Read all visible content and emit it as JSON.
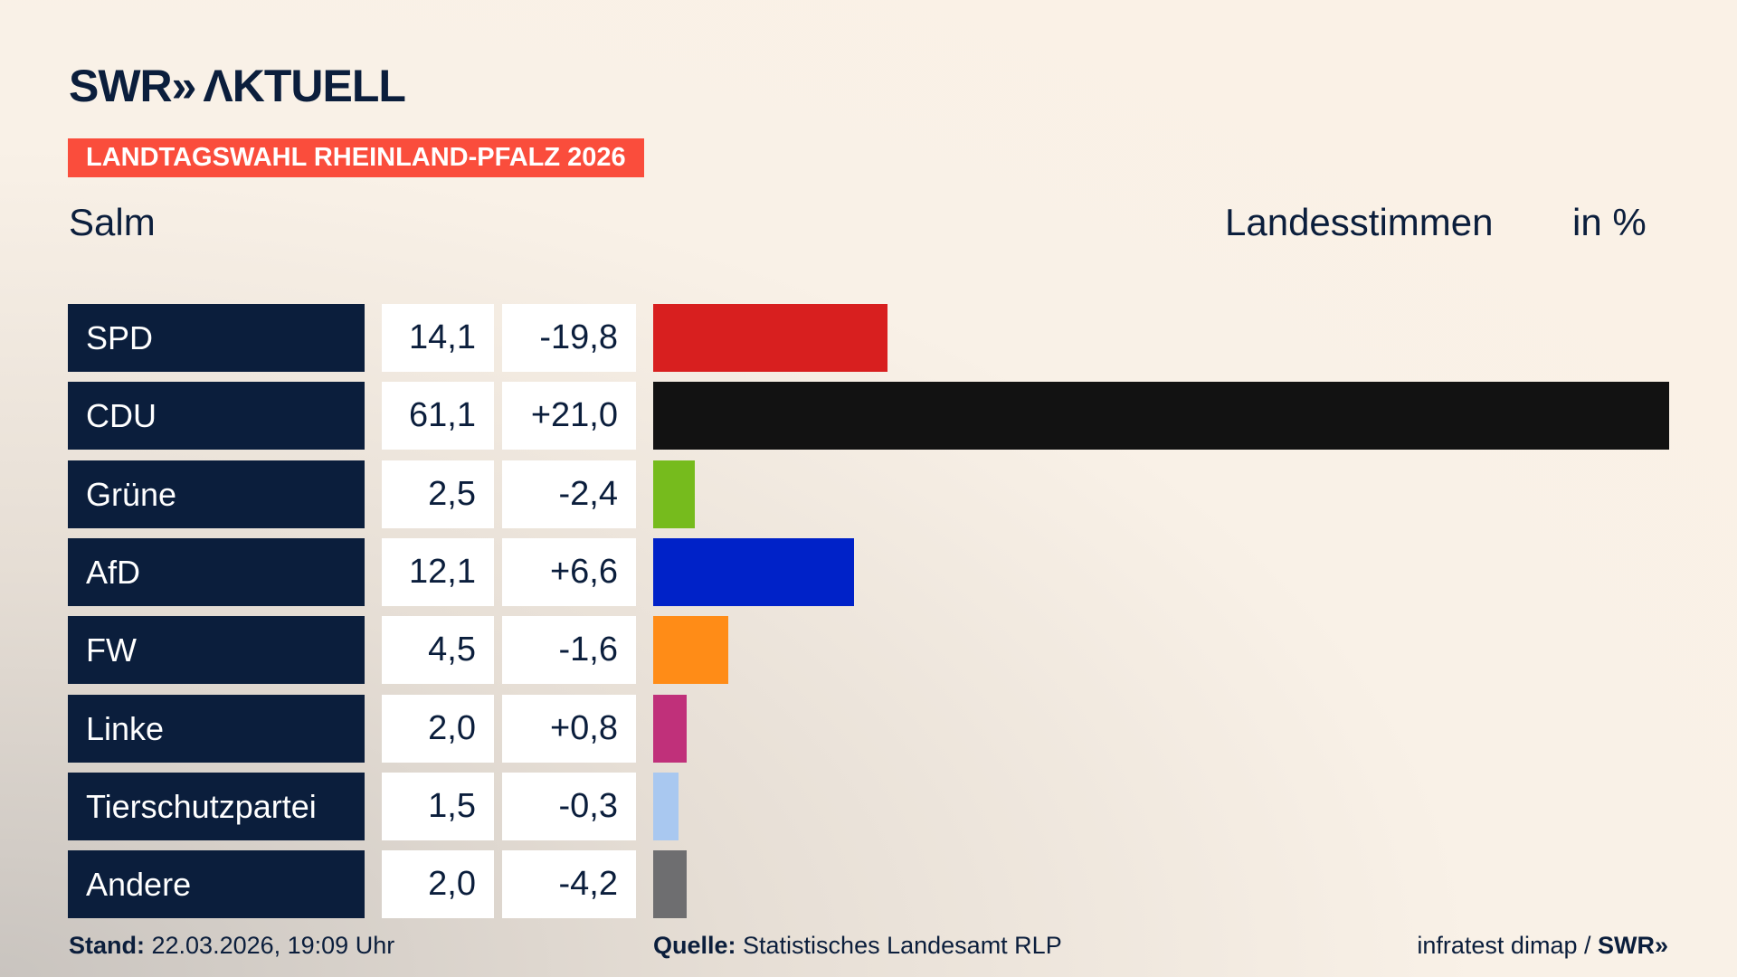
{
  "logo": "SWR» AKTUELL",
  "banner": "LANDTAGSWAHL RHEINLAND-PFALZ 2026",
  "region": "Salm",
  "measure": "Landesstimmen",
  "unit": "in %",
  "chart_data": {
    "type": "bar",
    "orientation": "horizontal",
    "categories": [
      "SPD",
      "CDU",
      "Grüne",
      "AfD",
      "FW",
      "Linke",
      "Tierschutzpartei",
      "Andere"
    ],
    "values": [
      14.1,
      61.1,
      2.5,
      12.1,
      4.5,
      2.0,
      1.5,
      2.0
    ],
    "value_labels": [
      "14,1",
      "61,1",
      "2,5",
      "12,1",
      "4,5",
      "2,0",
      "1,5",
      "2,0"
    ],
    "diff_labels": [
      "-19,8",
      "+21,0",
      "-2,4",
      "+6,6",
      "-1,6",
      "+0,8",
      "-0,3",
      "-4,2"
    ],
    "colors": [
      "#d81f1f",
      "#121212",
      "#76bb1d",
      "#0022c8",
      "#ff8c17",
      "#c0307a",
      "#a9c8f0",
      "#6e6e70"
    ],
    "xlim": [
      0,
      61.1
    ]
  },
  "footer": {
    "stand_label": "Stand:",
    "stand_value": " 22.03.2026, 19:09 Uhr",
    "source_label": "Quelle:",
    "source_value": " Statistisches Landesamt RLP",
    "credit": "infratest dimap / ",
    "credit_logo": "SWR»"
  }
}
